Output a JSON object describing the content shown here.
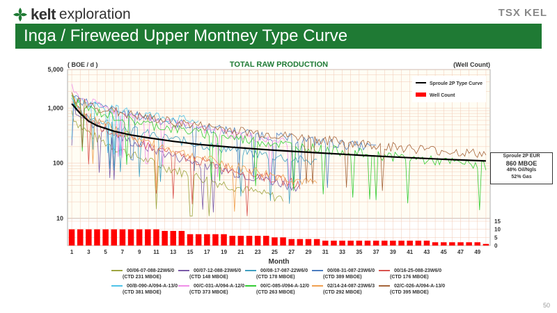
{
  "header": {
    "brand": "kelt",
    "brand_sub": "exploration",
    "tsx": "TSX KEL",
    "title": "Inga / Fireweed Upper Montney Type Curve"
  },
  "page_number": "50",
  "annotation_box": {
    "line1": "Sproule 2P EUR",
    "line2": "860 MBOE",
    "line3": "48% Oil/Ngls",
    "line4": "52% Gas"
  },
  "chart_data": {
    "type": "line",
    "title": "TOTAL RAW PRODUCTION",
    "ylabel": "( BOE / d )",
    "y2label": "(Well Count)",
    "xlabel": "Month",
    "yscale": "log",
    "ylim": [
      10,
      5000
    ],
    "y_ticks": [
      "5,000",
      "1,000",
      "100",
      "10"
    ],
    "y2_ticks": [
      "15",
      "10",
      "5",
      "0"
    ],
    "y2lim": [
      0,
      15
    ],
    "x_ticks": [
      "1",
      "3",
      "5",
      "7",
      "9",
      "11",
      "13",
      "15",
      "17",
      "19",
      "21",
      "23",
      "25",
      "27",
      "29",
      "31",
      "33",
      "35",
      "37",
      "39",
      "41",
      "43",
      "45",
      "47",
      "49"
    ],
    "xlim": [
      1,
      50
    ],
    "grid": true,
    "legend_position": "top-right",
    "type_curve": {
      "name": "Sproule 2P Type Curve",
      "color": "#000000",
      "x": [
        1,
        2,
        3,
        4,
        6,
        8,
        10,
        13,
        16,
        20,
        25,
        30,
        35,
        40,
        45,
        50
      ],
      "y": [
        1200,
        800,
        580,
        480,
        380,
        325,
        290,
        250,
        220,
        195,
        172,
        155,
        140,
        128,
        118,
        110
      ]
    },
    "well_count": {
      "name": "Well Count",
      "color": "#ff0000",
      "x": [
        1,
        2,
        3,
        4,
        5,
        6,
        7,
        8,
        9,
        10,
        11,
        12,
        13,
        14,
        15,
        16,
        17,
        18,
        19,
        20,
        21,
        22,
        23,
        24,
        25,
        26,
        27,
        28,
        29,
        30,
        31,
        32,
        33,
        34,
        35,
        36,
        37,
        38,
        39,
        40,
        41,
        42,
        43,
        44,
        45,
        46,
        47,
        48,
        49,
        50
      ],
      "values": [
        10,
        10,
        10,
        10,
        10,
        10,
        10,
        10,
        10,
        10,
        10,
        9,
        9,
        9,
        7,
        7,
        7,
        7,
        7,
        6,
        6,
        6,
        6,
        6,
        5,
        5,
        4,
        4,
        4,
        4,
        3,
        3,
        3,
        3,
        3,
        3,
        3,
        3,
        3,
        3,
        3,
        3,
        3,
        2,
        2,
        2,
        2,
        2,
        2,
        1
      ]
    },
    "series": [
      {
        "name": "00/06-07-088-22W6/0",
        "note": "(CTD 231 MBOE)",
        "color": "#9ea541"
      },
      {
        "name": "00/07-12-088-23W6/0",
        "note": "(CTD 148 MBOE)",
        "color": "#7a5aa8"
      },
      {
        "name": "00/08-17-087-22W6/0",
        "note": "(CTD 178 MBOE)",
        "color": "#3f9fc0"
      },
      {
        "name": "00/08-31-087-23W6/0",
        "note": "(CTD 389 MBOE)",
        "color": "#4c7dbf"
      },
      {
        "name": "00/16-25-088-23W6/0",
        "note": "(CTD 176 MBOE)",
        "color": "#d9534f"
      },
      {
        "name": "00/B-090-A/094-A-13/0",
        "note": "(CTD 381 MBOE)",
        "color": "#4fc3e8"
      },
      {
        "name": "00/C-031-A/094-A-12/0",
        "note": "(CTD 373 MBOE)",
        "color": "#f08ee8"
      },
      {
        "name": "00/C-085-I/094-A-12/0",
        "note": "(CTD 263 MBOE)",
        "color": "#33cc33"
      },
      {
        "name": "02/14-24-087-23W6/3",
        "note": "(CTD 292 MBOE)",
        "color": "#f0a050"
      },
      {
        "name": "02/C-026-A/094-A-13/0",
        "note": "(CTD 395 MBOE)",
        "color": "#a5653a"
      }
    ]
  }
}
